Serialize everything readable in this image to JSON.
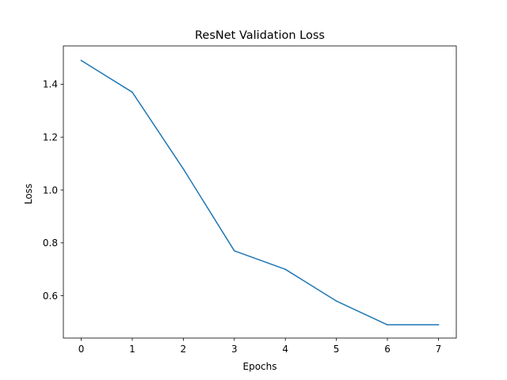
{
  "chart_data": {
    "type": "line",
    "title": "ResNet Validation Loss",
    "xlabel": "Epochs",
    "ylabel": "Loss",
    "x": [
      0,
      1,
      2,
      3,
      4,
      5,
      6,
      7
    ],
    "series": [
      {
        "values": [
          1.49,
          1.37,
          1.08,
          0.77,
          0.7,
          0.58,
          0.49,
          0.49
        ],
        "color": "#1f77b4"
      }
    ],
    "xlim": [
      -0.35,
      7.35
    ],
    "ylim": [
      0.44,
      1.545
    ],
    "xticks": [
      0,
      1,
      2,
      3,
      4,
      5,
      6,
      7
    ],
    "yticks": [
      0.6,
      0.8,
      1.0,
      1.2,
      1.4
    ],
    "ytick_labels": [
      "0.6",
      "0.8",
      "1.0",
      "1.2",
      "1.4"
    ],
    "grid": false,
    "legend": false
  }
}
